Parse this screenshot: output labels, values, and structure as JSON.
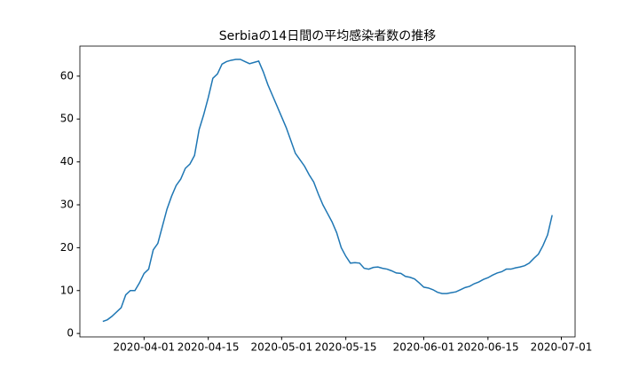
{
  "chart_data": {
    "type": "line",
    "title": "Serbiaの14日間の平均感染者数の推移",
    "x": [
      "2020-03-23",
      "2020-03-24",
      "2020-03-25",
      "2020-03-26",
      "2020-03-27",
      "2020-03-28",
      "2020-03-29",
      "2020-03-30",
      "2020-03-31",
      "2020-04-01",
      "2020-04-02",
      "2020-04-03",
      "2020-04-04",
      "2020-04-05",
      "2020-04-06",
      "2020-04-07",
      "2020-04-08",
      "2020-04-09",
      "2020-04-10",
      "2020-04-11",
      "2020-04-12",
      "2020-04-13",
      "2020-04-14",
      "2020-04-15",
      "2020-04-16",
      "2020-04-17",
      "2020-04-18",
      "2020-04-19",
      "2020-04-20",
      "2020-04-21",
      "2020-04-22",
      "2020-04-23",
      "2020-04-24",
      "2020-04-25",
      "2020-04-26",
      "2020-04-27",
      "2020-04-28",
      "2020-04-29",
      "2020-04-30",
      "2020-05-01",
      "2020-05-02",
      "2020-05-03",
      "2020-05-04",
      "2020-05-05",
      "2020-05-06",
      "2020-05-07",
      "2020-05-08",
      "2020-05-09",
      "2020-05-10",
      "2020-05-11",
      "2020-05-12",
      "2020-05-13",
      "2020-05-14",
      "2020-05-15",
      "2020-05-16",
      "2020-05-17",
      "2020-05-18",
      "2020-05-19",
      "2020-05-20",
      "2020-05-21",
      "2020-05-22",
      "2020-05-23",
      "2020-05-24",
      "2020-05-25",
      "2020-05-26",
      "2020-05-27",
      "2020-05-28",
      "2020-05-29",
      "2020-05-30",
      "2020-05-31",
      "2020-06-01",
      "2020-06-02",
      "2020-06-03",
      "2020-06-04",
      "2020-06-05",
      "2020-06-06",
      "2020-06-07",
      "2020-06-08",
      "2020-06-09",
      "2020-06-10",
      "2020-06-11",
      "2020-06-12",
      "2020-06-13",
      "2020-06-14",
      "2020-06-15",
      "2020-06-16",
      "2020-06-17",
      "2020-06-18",
      "2020-06-19",
      "2020-06-20",
      "2020-06-21",
      "2020-06-22",
      "2020-06-23",
      "2020-06-24",
      "2020-06-25",
      "2020-06-26",
      "2020-06-27",
      "2020-06-28",
      "2020-06-29"
    ],
    "series": [
      {
        "color": "#1f77b4",
        "values": [
          2.8,
          3.2,
          4,
          5,
          6,
          9,
          10,
          10,
          11.8,
          14,
          15,
          19.5,
          21,
          25,
          29,
          32,
          34.5,
          36,
          38.5,
          39.5,
          41.5,
          47.5,
          51,
          55,
          59.5,
          60.5,
          62.8,
          63.4,
          63.7,
          63.9,
          63.9,
          63.4,
          62.9,
          63.2,
          63.5,
          61,
          58,
          55.5,
          53,
          50.5,
          48,
          45,
          42,
          40.5,
          39,
          37,
          35.3,
          32.5,
          30,
          28,
          26,
          23.5,
          20,
          18,
          16.4,
          16.5,
          16.4,
          15.2,
          15,
          15.4,
          15.5,
          15.2,
          15,
          14.6,
          14.1,
          14,
          13.3,
          13.1,
          12.7,
          11.8,
          10.8,
          10.6,
          10.2,
          9.6,
          9.3,
          9.3,
          9.5,
          9.7,
          10.2,
          10.7,
          11,
          11.6,
          12,
          12.6,
          13,
          13.6,
          14.1,
          14.4,
          15,
          15,
          15.3,
          15.5,
          15.8,
          16.4,
          17.5,
          18.5,
          20.5,
          23,
          27.6
        ]
      }
    ],
    "xlim": [
      "2020-03-18",
      "2020-07-04"
    ],
    "xticks": [
      "2020-04-01",
      "2020-04-15",
      "2020-05-01",
      "2020-05-15",
      "2020-06-01",
      "2020-06-15",
      "2020-07-01"
    ],
    "ylim": [
      -0.8,
      67
    ],
    "yticks": [
      0,
      10,
      20,
      30,
      40,
      50,
      60
    ]
  }
}
